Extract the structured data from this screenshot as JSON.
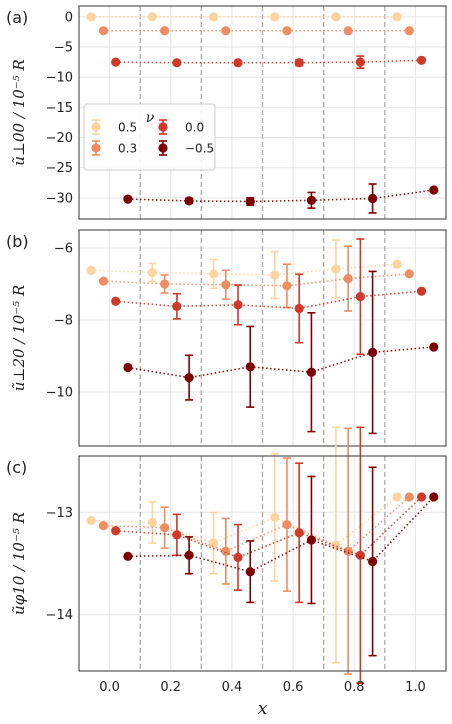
{
  "chart_data": [
    {
      "type": "scatter",
      "panel_label": "(a)",
      "ylabel": "ũ⊥00 / 10⁻⁵ R",
      "ylim": [
        -33.5,
        1.8
      ],
      "yticks": [
        0,
        -5,
        -10,
        -15,
        -20,
        -25,
        -30
      ],
      "ytick_labels": [
        "0",
        "−5",
        "−10",
        "−15",
        "−20",
        "−25",
        "−30"
      ],
      "series": [
        {
          "name": "0.5",
          "color": "#fdd49e",
          "x": [
            -0.06,
            0.14,
            0.34,
            0.54,
            0.74,
            0.94
          ],
          "y": [
            0.0,
            0.0,
            0.0,
            0.0,
            0.0,
            0.0
          ],
          "err": [
            0,
            0,
            0,
            0,
            0,
            0
          ]
        },
        {
          "name": "0.3",
          "color": "#f08c62",
          "x": [
            -0.02,
            0.18,
            0.38,
            0.58,
            0.78,
            0.98
          ],
          "y": [
            -2.3,
            -2.3,
            -2.3,
            -2.3,
            -2.3,
            -2.3
          ],
          "err": [
            0,
            0,
            0,
            0,
            0,
            0
          ]
        },
        {
          "name": "0.0",
          "color": "#d03828",
          "x": [
            0.02,
            0.22,
            0.42,
            0.62,
            0.82,
            1.02
          ],
          "y": [
            -7.5,
            -7.6,
            -7.6,
            -7.6,
            -7.5,
            -7.2
          ],
          "err": [
            0,
            0,
            0,
            0.5,
            1.0,
            0
          ]
        },
        {
          "name": "−0.5",
          "color": "#7f0000",
          "x": [
            0.06,
            0.26,
            0.46,
            0.66,
            0.86,
            1.06
          ],
          "y": [
            -30.2,
            -30.5,
            -30.6,
            -30.4,
            -30.1,
            -28.7
          ],
          "err": [
            0,
            0.4,
            0.6,
            1.3,
            2.4,
            0
          ]
        }
      ],
      "legend": {
        "title": "ν",
        "placement": "center-left",
        "entries": [
          "0.5",
          "0.3",
          "0.0",
          "−0.5"
        ]
      }
    },
    {
      "type": "scatter",
      "panel_label": "(b)",
      "ylabel": "ũ⊥20 / 10⁻⁵ R",
      "ylim": [
        -11.5,
        -5.5
      ],
      "yticks": [
        -6,
        -8,
        -10
      ],
      "ytick_labels": [
        "−6",
        "−8",
        "−10"
      ],
      "series": [
        {
          "name": "0.5",
          "color": "#fdd49e",
          "x": [
            -0.06,
            0.14,
            0.34,
            0.54,
            0.74,
            0.94
          ],
          "y": [
            -6.62,
            -6.68,
            -6.72,
            -6.75,
            -6.58,
            -6.45
          ],
          "err": [
            0,
            0.25,
            0.4,
            0.65,
            0.8,
            0
          ]
        },
        {
          "name": "0.3",
          "color": "#f08c62",
          "x": [
            -0.02,
            0.18,
            0.38,
            0.58,
            0.78,
            0.98
          ],
          "y": [
            -6.92,
            -7.0,
            -7.02,
            -7.05,
            -6.85,
            -6.72
          ],
          "err": [
            0,
            0.25,
            0.4,
            0.6,
            0.9,
            0
          ]
        },
        {
          "name": "0.0",
          "color": "#d03828",
          "x": [
            0.02,
            0.22,
            0.42,
            0.62,
            0.82,
            1.02
          ],
          "y": [
            -7.48,
            -7.62,
            -7.58,
            -7.68,
            -7.35,
            -7.2
          ],
          "err": [
            0,
            0.35,
            0.55,
            0.95,
            1.6,
            0
          ]
        },
        {
          "name": "−0.5",
          "color": "#7f0000",
          "x": [
            0.06,
            0.26,
            0.46,
            0.66,
            0.86,
            1.06
          ],
          "y": [
            -9.32,
            -9.6,
            -9.3,
            -9.45,
            -8.9,
            -8.75
          ],
          "err": [
            0,
            0.62,
            1.12,
            1.65,
            2.25,
            0
          ]
        }
      ]
    },
    {
      "type": "scatter",
      "panel_label": "(c)",
      "ylabel": "ũφ10 / 10⁻⁵ R",
      "ylim": [
        -14.55,
        -12.45
      ],
      "yticks": [
        -13,
        -14
      ],
      "ytick_labels": [
        "−13",
        "−14"
      ],
      "xlabel": "x",
      "xlim": [
        -0.1,
        1.1
      ],
      "xticks": [
        0.0,
        0.2,
        0.4,
        0.6,
        0.8,
        1.0
      ],
      "xtick_labels": [
        "0.0",
        "0.2",
        "0.4",
        "0.6",
        "0.8",
        "1.0"
      ],
      "series": [
        {
          "name": "0.5",
          "color": "#fdd49e",
          "x": [
            -0.06,
            0.14,
            0.34,
            0.54,
            0.74,
            0.94
          ],
          "y": [
            -13.08,
            -13.1,
            -13.3,
            -13.05,
            -13.32,
            -12.85
          ],
          "err": [
            0,
            0.2,
            0.3,
            0.62,
            1.15,
            0
          ]
        },
        {
          "name": "0.3",
          "color": "#f08c62",
          "x": [
            -0.02,
            0.18,
            0.38,
            0.58,
            0.78,
            0.98
          ],
          "y": [
            -13.13,
            -13.15,
            -13.38,
            -13.12,
            -13.38,
            -12.85
          ],
          "err": [
            0,
            0.2,
            0.32,
            0.65,
            1.2,
            0
          ]
        },
        {
          "name": "0.0",
          "color": "#d03828",
          "x": [
            0.02,
            0.22,
            0.42,
            0.62,
            0.82,
            1.02
          ],
          "y": [
            -13.18,
            -13.22,
            -13.44,
            -13.2,
            -13.42,
            -12.85
          ],
          "err": [
            0,
            0.2,
            0.32,
            0.68,
            1.25,
            0
          ]
        },
        {
          "name": "−0.5",
          "color": "#7f0000",
          "x": [
            0.06,
            0.26,
            0.46,
            0.66,
            0.86,
            1.06
          ],
          "y": [
            -13.43,
            -13.42,
            -13.58,
            -13.27,
            -13.48,
            -12.85
          ],
          "err": [
            0,
            0.18,
            0.3,
            0.62,
            0.92,
            0
          ]
        }
      ]
    }
  ],
  "vlines_x": [
    0.1,
    0.3,
    0.5,
    0.7,
    0.9
  ],
  "colors": {
    "nu_0.5": "#fdd49e",
    "nu_0.3": "#f08c62",
    "nu_0.0": "#d03828",
    "nu_-0.5": "#7f0000",
    "grid": "#e5e5e5",
    "vline": "#aaaaaa"
  }
}
